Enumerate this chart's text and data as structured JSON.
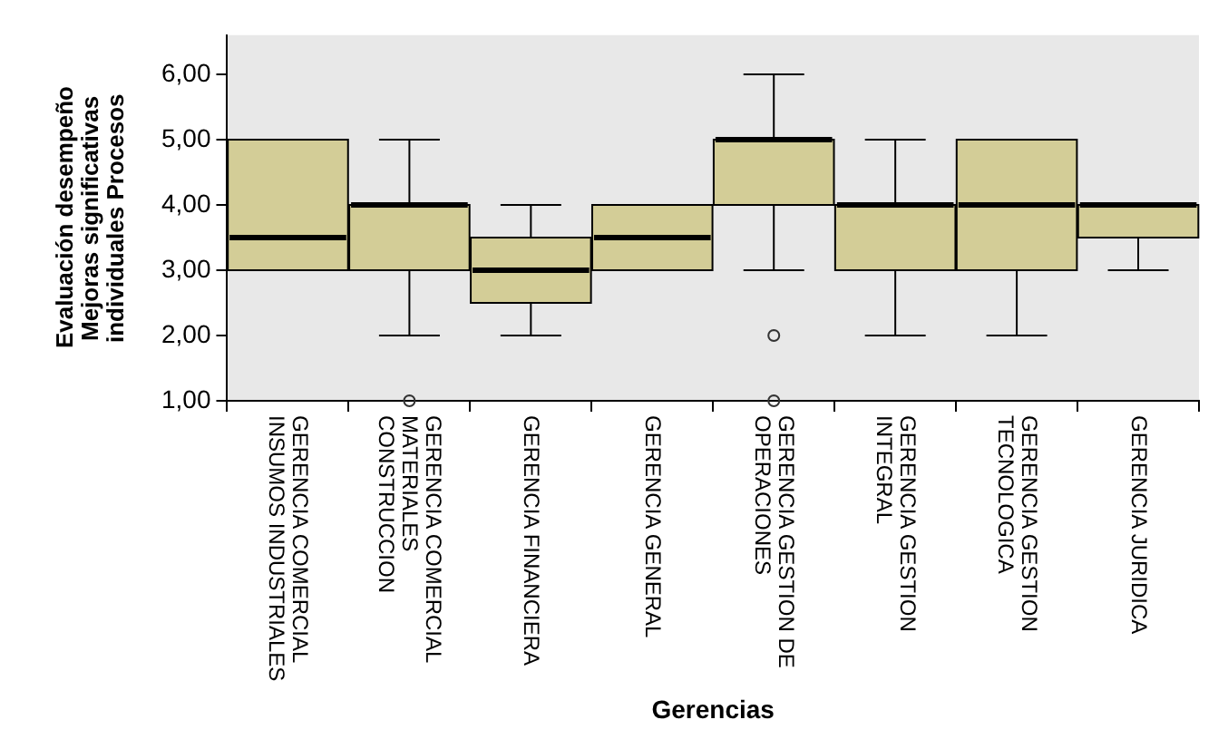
{
  "chart_data": {
    "type": "box",
    "xlabel": "Gerencias",
    "ylabel": "Evaluación desempeño Mejoras significativas individuales Procesos",
    "categories": [
      "GERENCIA COMERCIAL INSUMOS INDUSTRIALES",
      "GERENCIA COMERCIAL MATERIALES CONSTRUCCION",
      "GERENCIA FINANCIERA",
      "GERENCIA GENERAL",
      "GERENCIA GESTION DE OPERACIONES",
      "GERENCIA GESTION INTEGRAL",
      "GERENCIA GESTION TECNOLOGICA",
      "GERENCIA JURIDICA"
    ],
    "color": "#d3cd97",
    "boxes": [
      {
        "low": 3,
        "q1": 3,
        "median": 3.5,
        "q3": 5,
        "high": 5
      },
      {
        "low": 2,
        "q1": 3,
        "median": 4,
        "q3": 4,
        "high": 5,
        "outliers": [
          1
        ]
      },
      {
        "low": 2,
        "q1": 2.5,
        "median": 3,
        "q3": 3.5,
        "high": 4
      },
      {
        "low": 3,
        "q1": 3,
        "median": 3.5,
        "q3": 4,
        "high": 4
      },
      {
        "low": 3,
        "q1": 4,
        "median": 5,
        "q3": 5,
        "high": 6,
        "outliers": [
          2,
          1
        ]
      },
      {
        "low": 2,
        "q1": 3,
        "median": 4,
        "q3": 4,
        "high": 5
      },
      {
        "low": 2,
        "q1": 3,
        "median": 4,
        "q3": 5,
        "high": 5
      },
      {
        "low": 3,
        "q1": 3.5,
        "median": 4,
        "q3": 4,
        "high": 4
      }
    ],
    "ylim": [
      1,
      6.6
    ],
    "yticks": [
      {
        "value": 1,
        "label": "1,00"
      },
      {
        "value": 2,
        "label": "2,00"
      },
      {
        "value": 3,
        "label": "3,00"
      },
      {
        "value": 4,
        "label": "4,00"
      },
      {
        "value": 5,
        "label": "5,00"
      },
      {
        "value": 6,
        "label": "6,00"
      }
    ],
    "grid": false,
    "legend": false,
    "marker": "circle"
  }
}
